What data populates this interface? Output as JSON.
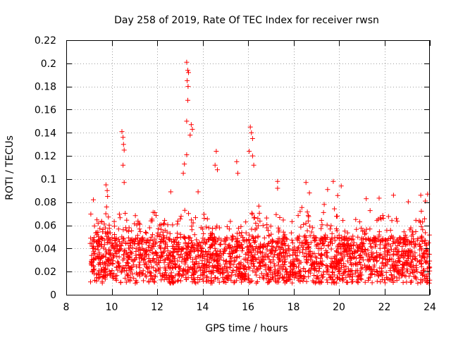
{
  "chart_data": {
    "type": "scatter",
    "title": "Day 258 of 2019, Rate Of TEC Index for receiver rwsn",
    "xlabel": "GPS time / hours",
    "ylabel": "ROTI / TECUs",
    "xlim": [
      8,
      24
    ],
    "ylim": [
      0,
      0.22
    ],
    "x_ticks": [
      8,
      10,
      12,
      14,
      16,
      18,
      20,
      22,
      24
    ],
    "x_tick_labels": [
      "8",
      "10",
      "12",
      "14",
      "16",
      "18",
      "20",
      "22",
      "24"
    ],
    "y_ticks": [
      0,
      0.02,
      0.04,
      0.06,
      0.08,
      0.1,
      0.12,
      0.14,
      0.16,
      0.18,
      0.2,
      0.22
    ],
    "y_tick_labels": [
      "0",
      "0.02",
      "0.04",
      "0.06",
      "0.08",
      "0.1",
      "0.12",
      "0.14",
      "0.16",
      "0.18",
      "0.2",
      "0.22"
    ],
    "grid": true,
    "marker": "+",
    "color": "#ff0000",
    "x_data_start": 9.05,
    "x_data_end": 24.0,
    "baseline_range": [
      0.01,
      0.05
    ],
    "notable_points": [
      {
        "x": 9.75,
        "y": 0.095
      },
      {
        "x": 9.8,
        "y": 0.09
      },
      {
        "x": 9.82,
        "y": 0.085
      },
      {
        "x": 10.45,
        "y": 0.141
      },
      {
        "x": 10.5,
        "y": 0.136
      },
      {
        "x": 10.52,
        "y": 0.13
      },
      {
        "x": 10.55,
        "y": 0.125
      },
      {
        "x": 10.5,
        "y": 0.112
      },
      {
        "x": 10.55,
        "y": 0.097
      },
      {
        "x": 13.3,
        "y": 0.201
      },
      {
        "x": 13.35,
        "y": 0.194
      },
      {
        "x": 13.38,
        "y": 0.192
      },
      {
        "x": 13.32,
        "y": 0.185
      },
      {
        "x": 13.36,
        "y": 0.18
      },
      {
        "x": 13.35,
        "y": 0.168
      },
      {
        "x": 13.3,
        "y": 0.15
      },
      {
        "x": 13.5,
        "y": 0.147
      },
      {
        "x": 13.55,
        "y": 0.143
      },
      {
        "x": 13.45,
        "y": 0.138
      },
      {
        "x": 13.3,
        "y": 0.121
      },
      {
        "x": 13.2,
        "y": 0.113
      },
      {
        "x": 13.15,
        "y": 0.105
      },
      {
        "x": 14.6,
        "y": 0.124
      },
      {
        "x": 14.55,
        "y": 0.112
      },
      {
        "x": 14.65,
        "y": 0.108
      },
      {
        "x": 15.5,
        "y": 0.115
      },
      {
        "x": 15.55,
        "y": 0.105
      },
      {
        "x": 16.1,
        "y": 0.145
      },
      {
        "x": 16.15,
        "y": 0.14
      },
      {
        "x": 16.2,
        "y": 0.135
      },
      {
        "x": 16.05,
        "y": 0.124
      },
      {
        "x": 16.2,
        "y": 0.12
      },
      {
        "x": 16.25,
        "y": 0.112
      },
      {
        "x": 12.6,
        "y": 0.089
      },
      {
        "x": 13.8,
        "y": 0.089
      },
      {
        "x": 17.3,
        "y": 0.098
      },
      {
        "x": 18.55,
        "y": 0.097
      },
      {
        "x": 19.75,
        "y": 0.098
      },
      {
        "x": 19.5,
        "y": 0.091
      },
      {
        "x": 20.1,
        "y": 0.094
      },
      {
        "x": 22.4,
        "y": 0.086
      },
      {
        "x": 23.6,
        "y": 0.086
      },
      {
        "x": 23.9,
        "y": 0.087
      },
      {
        "x": 23.8,
        "y": 0.081
      },
      {
        "x": 21.2,
        "y": 0.083
      },
      {
        "x": 18.7,
        "y": 0.088
      },
      {
        "x": 17.3,
        "y": 0.092
      }
    ]
  }
}
